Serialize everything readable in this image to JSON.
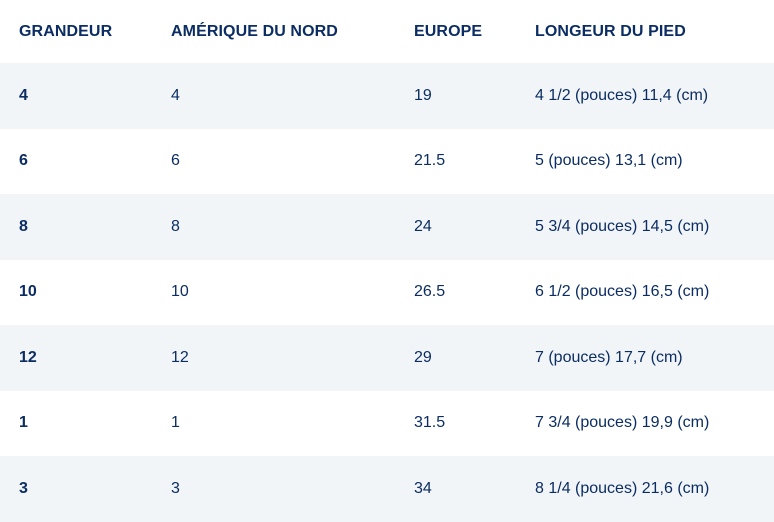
{
  "table": {
    "headers": [
      "GRANDEUR",
      "AMÉRIQUE DU NORD",
      "EUROPE",
      "LONGEUR DU PIED"
    ],
    "rows": [
      [
        "4",
        "4",
        "19",
        "4 1/2 (pouces) 11,4 (cm)"
      ],
      [
        "6",
        "6",
        "21.5",
        "5 (pouces) 13,1 (cm)"
      ],
      [
        "8",
        "8",
        "24",
        "5 3/4 (pouces) 14,5 (cm)"
      ],
      [
        "10",
        "10",
        "26.5",
        "6 1/2 (pouces) 16,5 (cm)"
      ],
      [
        "12",
        "12",
        "29",
        "7 (pouces) 17,7 (cm)"
      ],
      [
        "1",
        "1",
        "31.5",
        "7 3/4 (pouces) 19,9 (cm)"
      ],
      [
        "3",
        "3",
        "34",
        "8 1/4 (pouces) 21,6 (cm)"
      ]
    ]
  },
  "colors": {
    "text": "#0b2d63",
    "stripe": "#f2f5f8",
    "background": "#ffffff"
  }
}
